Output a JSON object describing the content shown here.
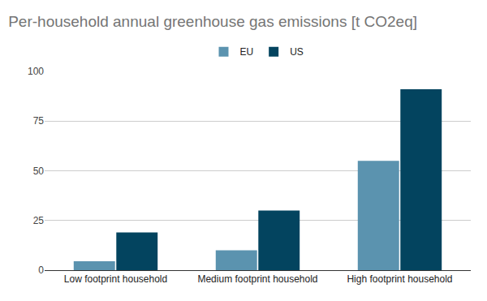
{
  "chart_data": {
    "type": "bar",
    "title": "Per-household annual greenhouse gas emissions [t CO2eq]",
    "categories": [
      "Low footprint household",
      "Medium footprint household",
      "High footprint household"
    ],
    "series": [
      {
        "name": "EU",
        "color": "#5b93af",
        "values": [
          4.5,
          10,
          55
        ]
      },
      {
        "name": "US",
        "color": "#03445f",
        "values": [
          19,
          30,
          91
        ]
      }
    ],
    "ylim": [
      0,
      100
    ],
    "yticks": [
      0,
      25,
      50,
      75,
      100
    ],
    "grid": true,
    "legend": "top"
  }
}
